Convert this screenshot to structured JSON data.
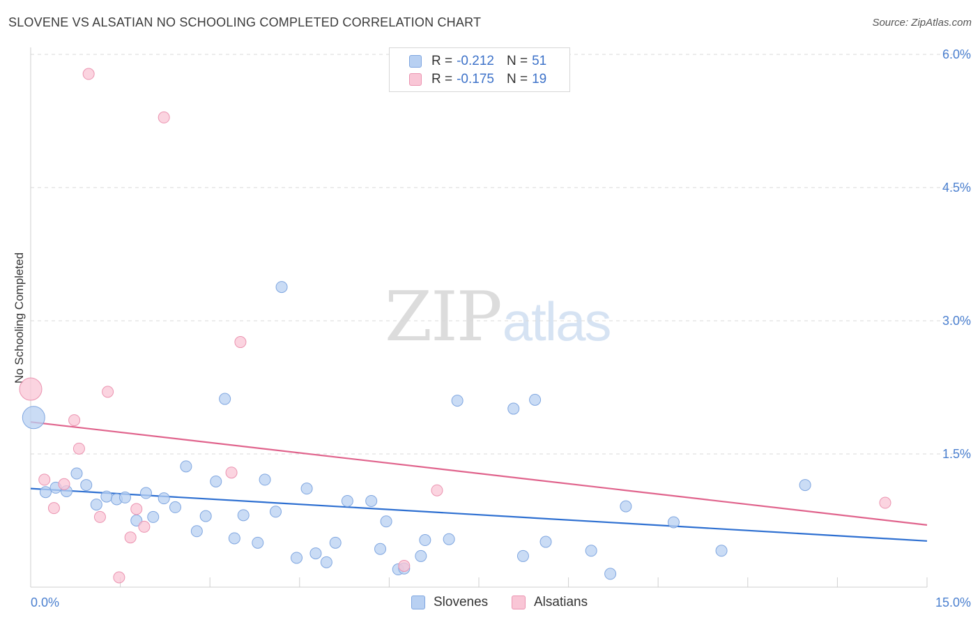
{
  "header": {
    "title": "SLOVENE VS ALSATIAN NO SCHOOLING COMPLETED CORRELATION CHART",
    "source": "Source: ZipAtlas.com"
  },
  "watermark": {
    "zip": "ZIP",
    "atlas": "atlas"
  },
  "colors": {
    "slovenes_fill": "#b8d0f2",
    "slovenes_stroke": "#7fa6e0",
    "slovenes_line": "#2d6fd1",
    "alsatians_fill": "#f9c6d6",
    "alsatians_stroke": "#eb93b0",
    "alsatians_line": "#e0638c",
    "tick_label": "#4a7fcf",
    "grid": "#d9d9d9"
  },
  "legend": {
    "rows": [
      {
        "r_label": "R =",
        "r_value": "-0.212",
        "n_label": "N =",
        "n_value": "51"
      },
      {
        "r_label": "R =",
        "r_value": "-0.175",
        "n_label": "N =",
        "n_value": "19"
      }
    ]
  },
  "bottom_legend": {
    "slovenes": "Slovenes",
    "alsatians": "Alsatians"
  },
  "chart_data": {
    "type": "scatter",
    "title": "SLOVENE VS ALSATIAN NO SCHOOLING COMPLETED CORRELATION CHART",
    "xlabel": "",
    "ylabel": "No Schooling Completed",
    "xlim": [
      0,
      15
    ],
    "ylim": [
      0,
      6.0
    ],
    "x_tick_labels": [
      "0.0%",
      "15.0%"
    ],
    "y_ticks": [
      1.5,
      3.0,
      4.5,
      6.0
    ],
    "y_tick_labels": [
      "1.5%",
      "3.0%",
      "4.5%",
      "6.0%"
    ],
    "grid": true,
    "series": [
      {
        "name": "Slovenes",
        "r": -0.212,
        "n": 51,
        "trend": {
          "x": [
            0,
            15
          ],
          "y": [
            1.11,
            0.52
          ]
        },
        "points": [
          {
            "x": 0.05,
            "y": 1.91,
            "big": true
          },
          {
            "x": 0.25,
            "y": 1.07
          },
          {
            "x": 0.42,
            "y": 1.12
          },
          {
            "x": 0.6,
            "y": 1.08
          },
          {
            "x": 0.77,
            "y": 1.28
          },
          {
            "x": 0.93,
            "y": 1.15
          },
          {
            "x": 1.1,
            "y": 0.93
          },
          {
            "x": 1.27,
            "y": 1.02
          },
          {
            "x": 1.44,
            "y": 0.99
          },
          {
            "x": 1.58,
            "y": 1.01
          },
          {
            "x": 1.77,
            "y": 0.75
          },
          {
            "x": 1.93,
            "y": 1.06
          },
          {
            "x": 2.05,
            "y": 0.79
          },
          {
            "x": 2.23,
            "y": 1.0
          },
          {
            "x": 2.42,
            "y": 0.9
          },
          {
            "x": 2.6,
            "y": 1.36
          },
          {
            "x": 2.78,
            "y": 0.63
          },
          {
            "x": 2.93,
            "y": 0.8
          },
          {
            "x": 3.1,
            "y": 1.19
          },
          {
            "x": 3.25,
            "y": 2.12
          },
          {
            "x": 3.41,
            "y": 0.55
          },
          {
            "x": 3.56,
            "y": 0.81
          },
          {
            "x": 3.8,
            "y": 0.5
          },
          {
            "x": 3.92,
            "y": 1.21
          },
          {
            "x": 4.1,
            "y": 0.85
          },
          {
            "x": 4.2,
            "y": 3.38
          },
          {
            "x": 4.45,
            "y": 0.33
          },
          {
            "x": 4.62,
            "y": 1.11
          },
          {
            "x": 4.77,
            "y": 0.38
          },
          {
            "x": 4.95,
            "y": 0.28
          },
          {
            "x": 5.1,
            "y": 0.5
          },
          {
            "x": 5.3,
            "y": 0.97
          },
          {
            "x": 5.7,
            "y": 0.97
          },
          {
            "x": 5.85,
            "y": 0.43
          },
          {
            "x": 5.95,
            "y": 0.74
          },
          {
            "x": 6.15,
            "y": 0.2
          },
          {
            "x": 6.25,
            "y": 0.21
          },
          {
            "x": 6.53,
            "y": 0.35
          },
          {
            "x": 6.6,
            "y": 0.53
          },
          {
            "x": 7.0,
            "y": 0.54
          },
          {
            "x": 7.14,
            "y": 2.1
          },
          {
            "x": 8.08,
            "y": 2.01
          },
          {
            "x": 8.24,
            "y": 0.35
          },
          {
            "x": 8.44,
            "y": 2.11
          },
          {
            "x": 8.62,
            "y": 0.51
          },
          {
            "x": 9.38,
            "y": 0.41
          },
          {
            "x": 9.7,
            "y": 0.15
          },
          {
            "x": 9.96,
            "y": 0.91
          },
          {
            "x": 10.76,
            "y": 0.73
          },
          {
            "x": 11.56,
            "y": 0.41
          },
          {
            "x": 12.96,
            "y": 1.15
          }
        ]
      },
      {
        "name": "Alsatians",
        "r": -0.175,
        "n": 19,
        "trend": {
          "x": [
            0,
            15
          ],
          "y": [
            1.86,
            0.7
          ]
        },
        "points": [
          {
            "x": 0.0,
            "y": 2.23,
            "big": true
          },
          {
            "x": 0.97,
            "y": 5.78
          },
          {
            "x": 2.23,
            "y": 5.29
          },
          {
            "x": 3.51,
            "y": 2.76
          },
          {
            "x": 1.29,
            "y": 2.2
          },
          {
            "x": 0.73,
            "y": 1.88
          },
          {
            "x": 0.81,
            "y": 1.56
          },
          {
            "x": 0.23,
            "y": 1.21
          },
          {
            "x": 0.56,
            "y": 1.16
          },
          {
            "x": 3.36,
            "y": 1.29
          },
          {
            "x": 0.39,
            "y": 0.89
          },
          {
            "x": 1.16,
            "y": 0.79
          },
          {
            "x": 1.77,
            "y": 0.88
          },
          {
            "x": 1.9,
            "y": 0.68
          },
          {
            "x": 1.67,
            "y": 0.56
          },
          {
            "x": 1.48,
            "y": 0.11
          },
          {
            "x": 6.25,
            "y": 0.24
          },
          {
            "x": 6.8,
            "y": 1.09
          },
          {
            "x": 14.3,
            "y": 0.95
          }
        ]
      }
    ]
  }
}
